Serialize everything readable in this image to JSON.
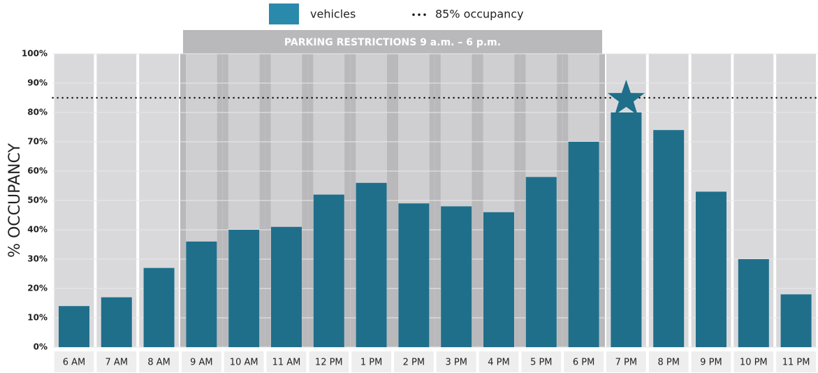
{
  "chart_data": {
    "type": "bar",
    "y_axis_label": "% OCCUPANCY",
    "annotation": "PARKING RESTRICTIONS 9 a.m. – 6 p.m.",
    "categories": [
      "6 AM",
      "7 AM",
      "8 AM",
      "9 AM",
      "10 AM",
      "11 AM",
      "12 PM",
      "1 PM",
      "2 PM",
      "3 PM",
      "4 PM",
      "5 PM",
      "6 PM",
      "7 PM",
      "8 PM",
      "9 PM",
      "10 PM",
      "11 PM"
    ],
    "series": [
      {
        "name": "vehicles",
        "color": "#1f6f8b",
        "legend_color": "#2a8aab",
        "values": [
          14,
          17,
          27,
          36,
          40,
          41,
          52,
          56,
          49,
          48,
          46,
          58,
          70,
          80,
          74,
          53,
          30,
          18
        ]
      }
    ],
    "reference_line": {
      "value": 85,
      "label": "85% occupancy"
    },
    "ylim": [
      0,
      100
    ],
    "yticks": [
      {
        "value": 0,
        "label": "0%"
      },
      {
        "value": 10,
        "label": "10%"
      },
      {
        "value": 20,
        "label": "20%"
      },
      {
        "value": 30,
        "label": "30%"
      },
      {
        "value": 40,
        "label": "40%"
      },
      {
        "value": 50,
        "label": "50%"
      },
      {
        "value": 60,
        "label": "60%"
      },
      {
        "value": 70,
        "label": "70%"
      },
      {
        "value": 80,
        "label": "80%"
      },
      {
        "value": 90,
        "label": "90%"
      },
      {
        "value": 100,
        "label": "100%"
      }
    ],
    "grid": true
  }
}
